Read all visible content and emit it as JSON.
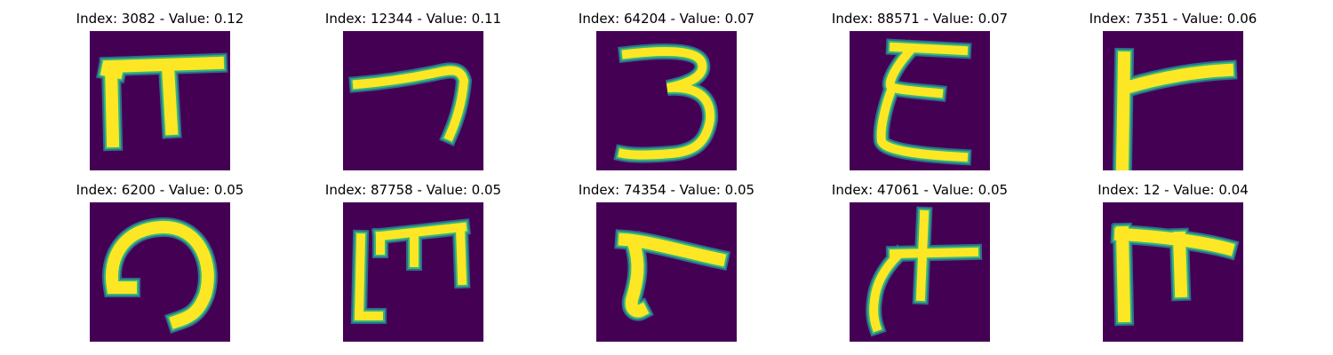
{
  "colors": {
    "background": "#440154",
    "stroke_core": "#fde725",
    "stroke_halo": "#35b779",
    "stroke_edge": "#2f6c8e"
  },
  "panels": [
    {
      "title": "Index: 3082 - Value: 0.12",
      "glyph": "pi-shape"
    },
    {
      "title": "Index: 12344 - Value: 0.11",
      "glyph": "hook-shape"
    },
    {
      "title": "Index: 64204 - Value: 0.07",
      "glyph": "three-shape"
    },
    {
      "title": "Index: 88571 - Value: 0.07",
      "glyph": "xi-shape"
    },
    {
      "title": "Index: 7351 - Value: 0.06",
      "glyph": "gamma-shape"
    },
    {
      "title": "Index: 6200 - Value: 0.05",
      "glyph": "arc-shape"
    },
    {
      "title": "Index: 87758 - Value: 0.05",
      "glyph": "m-shape"
    },
    {
      "title": "Index: 74354 - Value: 0.05",
      "glyph": "r-shape"
    },
    {
      "title": "Index: 47061 - Value: 0.05",
      "glyph": "cross-shape"
    },
    {
      "title": "Index: 12 - Value: 0.04",
      "glyph": "pi-small-shape"
    }
  ]
}
